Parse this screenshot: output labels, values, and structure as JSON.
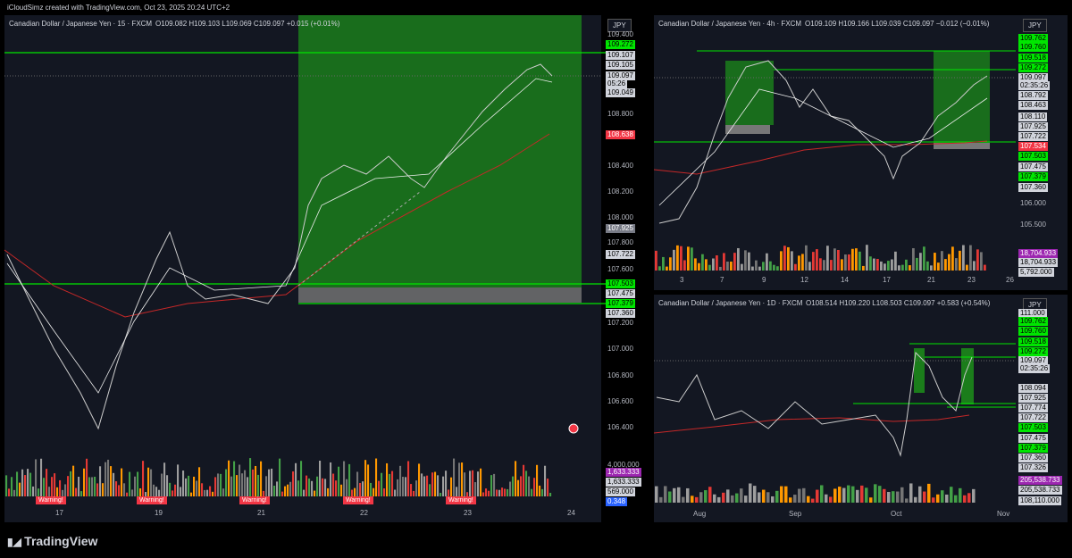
{
  "header": {
    "text": "iCloudSimz created with TradingView.com, Oct 23, 2025 20:24 UTC+2"
  },
  "footer": {
    "logo": "TradingView"
  },
  "panels": [
    {
      "title": "Canadian Dollar / Japanese Yen · 15 · FXCM",
      "stats": "O109.082 H109.103 L109.069 C109.097 +0.015 (+0.01%)",
      "currency": "JPY",
      "price_labels": [
        {
          "text": "109.400",
          "style": "plain"
        },
        {
          "text": "109.272",
          "style": "green"
        },
        {
          "text": "109.107",
          "style": "white"
        },
        {
          "text": "109.105",
          "style": "white"
        },
        {
          "text": "109.097",
          "style": "white"
        },
        {
          "text": "05:26",
          "style": "white"
        },
        {
          "text": "109.049",
          "style": "white"
        },
        {
          "text": "108.800",
          "style": "plain"
        },
        {
          "text": "108.638",
          "style": "red"
        },
        {
          "text": "108.400",
          "style": "plain"
        },
        {
          "text": "108.200",
          "style": "plain"
        },
        {
          "text": "108.000",
          "style": "plain"
        },
        {
          "text": "107.925",
          "style": "gray"
        },
        {
          "text": "107.800",
          "style": "plain"
        },
        {
          "text": "107.722",
          "style": "white"
        },
        {
          "text": "107.600",
          "style": "plain"
        },
        {
          "text": "107.503",
          "style": "green"
        },
        {
          "text": "107.475",
          "style": "white"
        },
        {
          "text": "107.379",
          "style": "green"
        },
        {
          "text": "107.360",
          "style": "white"
        },
        {
          "text": "107.200",
          "style": "plain"
        },
        {
          "text": "107.000",
          "style": "plain"
        },
        {
          "text": "106.800",
          "style": "plain"
        },
        {
          "text": "106.600",
          "style": "plain"
        },
        {
          "text": "106.400",
          "style": "plain"
        },
        {
          "text": "4,000,000",
          "style": "plain"
        },
        {
          "text": "1,633.333",
          "style": "purple"
        },
        {
          "text": "1,633.333",
          "style": "white"
        },
        {
          "text": "569.000",
          "style": "white"
        },
        {
          "text": "0.348",
          "style": "blue"
        }
      ],
      "x_labels": [
        "17",
        "19",
        "21",
        "22",
        "23",
        "24"
      ],
      "warnings": [
        "Warning!",
        "Warning!",
        "Warning!",
        "Warning!",
        "Warning!"
      ]
    },
    {
      "title": "Canadian Dollar / Japanese Yen · 4h · FXCM",
      "stats": "O109.109 H109.166 L109.039 C109.097 −0.012 (−0.01%)",
      "currency": "JPY",
      "price_labels": [
        {
          "text": "109.762",
          "style": "green"
        },
        {
          "text": "109.760",
          "style": "green"
        },
        {
          "text": "109.518",
          "style": "green"
        },
        {
          "text": "109.272",
          "style": "green"
        },
        {
          "text": "109.097",
          "style": "white"
        },
        {
          "text": "02:35:26",
          "style": "white"
        },
        {
          "text": "108.792",
          "style": "white"
        },
        {
          "text": "108.463",
          "style": "white"
        },
        {
          "text": "108.110",
          "style": "white"
        },
        {
          "text": "107.925",
          "style": "white"
        },
        {
          "text": "107.722",
          "style": "white"
        },
        {
          "text": "107.534",
          "style": "red"
        },
        {
          "text": "107.503",
          "style": "green"
        },
        {
          "text": "107.475",
          "style": "white"
        },
        {
          "text": "107.379",
          "style": "green"
        },
        {
          "text": "107.360",
          "style": "white"
        },
        {
          "text": "106.000",
          "style": "plain"
        },
        {
          "text": "105.500",
          "style": "plain"
        },
        {
          "text": "18,704.933",
          "style": "purple"
        },
        {
          "text": "18,704.933",
          "style": "white"
        },
        {
          "text": "5,792.000",
          "style": "white"
        }
      ],
      "x_labels": [
        "3",
        "7",
        "9",
        "12",
        "14",
        "17",
        "21",
        "23",
        "26"
      ]
    },
    {
      "title": "Canadian Dollar / Japanese Yen · 1D · FXCM",
      "stats": "O108.514 H109.220 L108.503 C109.097 +0.583 (+0.54%)",
      "currency": "JPY",
      "price_labels": [
        {
          "text": "111.000",
          "style": "white"
        },
        {
          "text": "109.762",
          "style": "green"
        },
        {
          "text": "109.760",
          "style": "green"
        },
        {
          "text": "109.518",
          "style": "green"
        },
        {
          "text": "109.272",
          "style": "green"
        },
        {
          "text": "109.097",
          "style": "white"
        },
        {
          "text": "02:35:26",
          "style": "white"
        },
        {
          "text": "108.094",
          "style": "white"
        },
        {
          "text": "107.925",
          "style": "white"
        },
        {
          "text": "107.774",
          "style": "white"
        },
        {
          "text": "107.722",
          "style": "white"
        },
        {
          "text": "107.503",
          "style": "green"
        },
        {
          "text": "107.475",
          "style": "white"
        },
        {
          "text": "107.379",
          "style": "green"
        },
        {
          "text": "107.360",
          "style": "white"
        },
        {
          "text": "107.326",
          "style": "white"
        },
        {
          "text": "205,538.733",
          "style": "purple"
        },
        {
          "text": "205,538.733",
          "style": "white"
        },
        {
          "text": "108,110.000",
          "style": "white"
        }
      ],
      "x_labels": [
        "Aug",
        "Sep",
        "Oct",
        "Nov"
      ]
    }
  ]
}
